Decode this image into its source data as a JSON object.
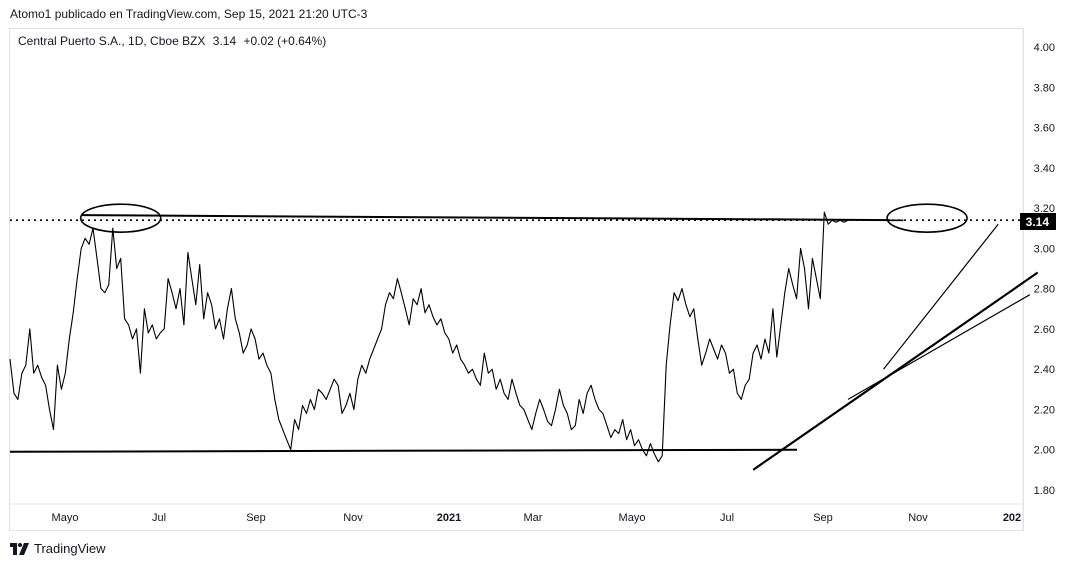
{
  "caption": "Atomo1 publicado en TradingView.com, Sep 15, 2021 21:20 UTC-3",
  "legend": {
    "symbol": "Central Puerto S.A., 1D, Cboe BZX",
    "price": "3.14",
    "change": "+0.02 (+0.64%)"
  },
  "price_badge": "3.14",
  "brand": "TradingView",
  "colors": {
    "line": "#000000",
    "badge_bg": "#000000",
    "badge_text": "#ffffff",
    "axis_border": "#e0e3eb"
  },
  "chart_data": {
    "type": "line",
    "y_ticks": [
      "4.00",
      "3.80",
      "3.60",
      "3.40",
      "3.20",
      "3.00",
      "2.80",
      "2.60",
      "2.40",
      "2.20",
      "2.00",
      "1.80"
    ],
    "x_ticks": [
      {
        "label": "Mayo",
        "bold": false
      },
      {
        "label": "Jul",
        "bold": false
      },
      {
        "label": "Sep",
        "bold": false
      },
      {
        "label": "Nov",
        "bold": false
      },
      {
        "label": "2021",
        "bold": true
      },
      {
        "label": "Mar",
        "bold": false
      },
      {
        "label": "Mayo",
        "bold": false
      },
      {
        "label": "Jul",
        "bold": false
      },
      {
        "label": "Sep",
        "bold": false
      },
      {
        "label": "Nov",
        "bold": false
      },
      {
        "label": "202",
        "bold": true
      }
    ],
    "ylim": [
      1.76,
      4.1
    ],
    "series": [
      {
        "values": [
          2.45,
          2.28,
          2.25,
          2.38,
          2.42,
          2.6,
          2.38,
          2.42,
          2.36,
          2.32,
          2.2,
          2.1,
          2.42,
          2.3,
          2.38,
          2.55,
          2.68,
          2.85,
          3.0,
          3.05,
          3.02,
          3.1,
          2.95,
          2.8,
          2.78,
          2.82,
          3.1,
          2.9,
          2.95,
          2.65,
          2.62,
          2.55,
          2.6,
          2.38,
          2.7,
          2.58,
          2.62,
          2.55,
          2.58,
          2.6,
          2.85,
          2.78,
          2.7,
          2.8,
          2.62,
          2.98,
          2.85,
          2.72,
          2.92,
          2.65,
          2.78,
          2.72,
          2.6,
          2.65,
          2.55,
          2.7,
          2.8,
          2.65,
          2.58,
          2.48,
          2.52,
          2.6,
          2.55,
          2.45,
          2.48,
          2.42,
          2.38,
          2.25,
          2.15,
          2.1,
          2.05,
          2.0,
          2.15,
          2.1,
          2.22,
          2.18,
          2.25,
          2.2,
          2.3,
          2.28,
          2.25,
          2.3,
          2.35,
          2.32,
          2.18,
          2.22,
          2.28,
          2.2,
          2.35,
          2.42,
          2.38,
          2.45,
          2.5,
          2.55,
          2.6,
          2.72,
          2.78,
          2.75,
          2.85,
          2.78,
          2.7,
          2.62,
          2.75,
          2.72,
          2.8,
          2.68,
          2.72,
          2.66,
          2.62,
          2.65,
          2.58,
          2.55,
          2.48,
          2.52,
          2.45,
          2.42,
          2.38,
          2.4,
          2.35,
          2.32,
          2.48,
          2.38,
          2.4,
          2.3,
          2.35,
          2.28,
          2.25,
          2.35,
          2.28,
          2.22,
          2.2,
          2.15,
          2.1,
          2.18,
          2.25,
          2.2,
          2.14,
          2.12,
          2.2,
          2.3,
          2.22,
          2.18,
          2.1,
          2.12,
          2.25,
          2.18,
          2.28,
          2.32,
          2.25,
          2.2,
          2.18,
          2.12,
          2.06,
          2.1,
          2.08,
          2.15,
          2.05,
          2.1,
          2.02,
          2.05,
          2.0,
          1.97,
          2.03,
          1.98,
          1.94,
          1.97,
          2.42,
          2.62,
          2.78,
          2.74,
          2.8,
          2.72,
          2.66,
          2.7,
          2.55,
          2.42,
          2.48,
          2.55,
          2.5,
          2.45,
          2.52,
          2.48,
          2.38,
          2.4,
          2.28,
          2.25,
          2.32,
          2.35,
          2.48,
          2.52,
          2.45,
          2.55,
          2.48,
          2.7,
          2.46,
          2.62,
          2.78,
          2.9,
          2.82,
          2.75,
          3.0,
          2.9,
          2.7,
          2.95,
          2.85,
          2.75,
          3.18,
          3.12,
          3.14,
          3.13,
          3.14,
          3.13,
          3.14
        ]
      }
    ],
    "title": "",
    "xlabel": "",
    "ylabel": "",
    "grid": false,
    "annotations": [
      {
        "type": "horizontal-dotted",
        "value": 3.14
      },
      {
        "type": "resistance-line",
        "from_index": 18,
        "to_index": 226,
        "from_value": 3.165,
        "to_value": 3.14
      },
      {
        "type": "support-line",
        "from_index": 0,
        "to_index": 226,
        "from_value": 1.99,
        "to_value": 2.0
      },
      {
        "type": "ellipse-highlight",
        "center_index": 28,
        "center_value": 3.15
      },
      {
        "type": "ellipse-highlight",
        "center_index": 232,
        "center_value": 3.15
      },
      {
        "type": "trendline",
        "from_index": 188,
        "to_index": 260,
        "from_value": 1.9,
        "to_value": 2.88
      },
      {
        "type": "trendline",
        "from_index": 212,
        "to_index": 258,
        "from_value": 2.25,
        "to_value": 2.77
      },
      {
        "type": "trendline",
        "from_index": 221,
        "to_index": 250,
        "from_value": 2.4,
        "to_value": 3.12
      }
    ]
  }
}
